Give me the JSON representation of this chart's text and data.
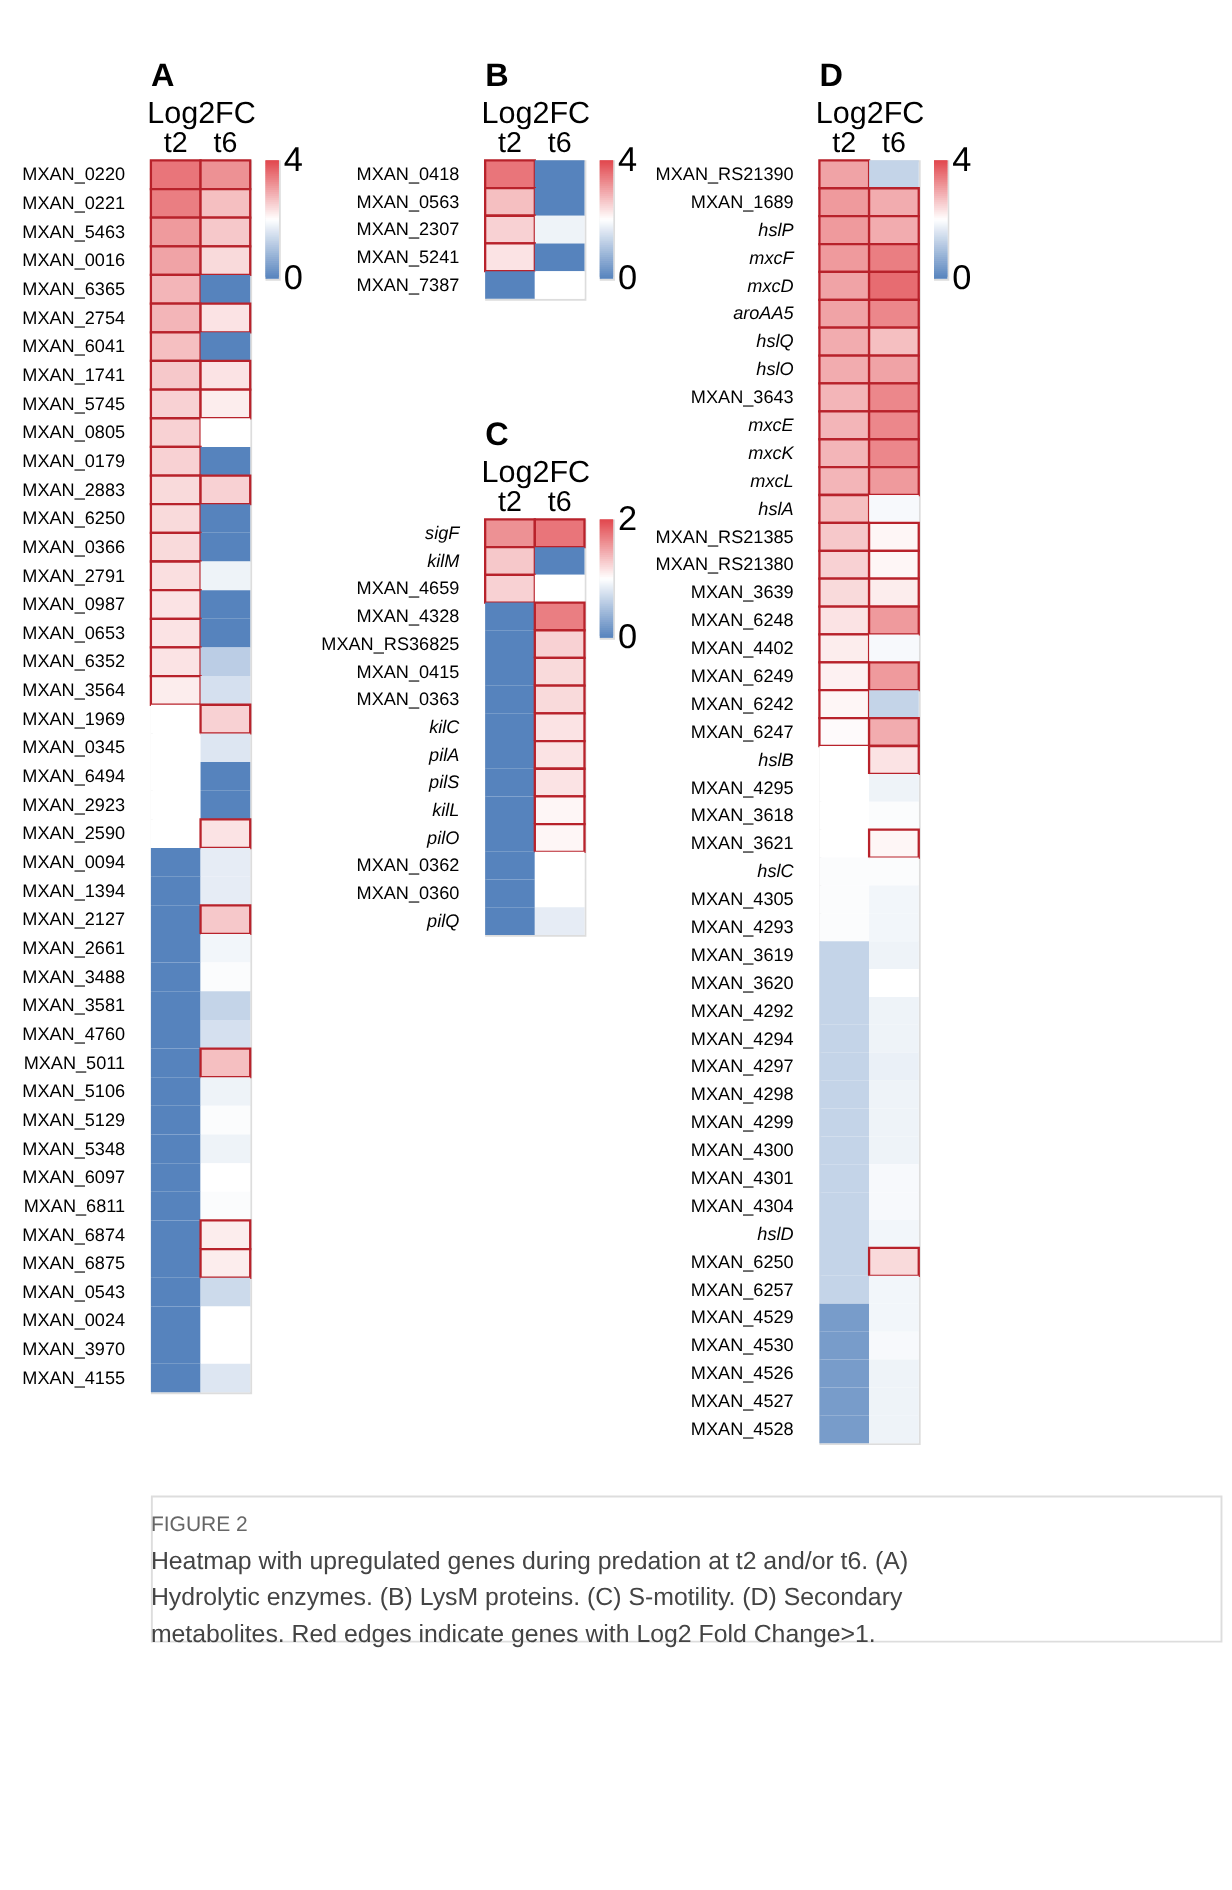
{
  "chart_data": [
    {
      "type": "heatmap",
      "title": "A",
      "xlabel": "Log2FC",
      "categories": [
        "t2",
        "t6"
      ],
      "clim": [
        0,
        4
      ],
      "cticks": [
        0,
        4
      ],
      "y_categories": [
        "MXAN_0220",
        "MXAN_0221",
        "MXAN_5463",
        "MXAN_0016",
        "MXAN_6365",
        "MXAN_2754",
        "MXAN_6041",
        "MXAN_1741",
        "MXAN_5745",
        "MXAN_0805",
        "MXAN_0179",
        "MXAN_2883",
        "MXAN_6250",
        "MXAN_0366",
        "MXAN_2791",
        "MXAN_0987",
        "MXAN_0653",
        "MXAN_6352",
        "MXAN_3564",
        "MXAN_1969",
        "MXAN_0345",
        "MXAN_6494",
        "MXAN_2923",
        "MXAN_2590",
        "MXAN_0094",
        "MXAN_1394",
        "MXAN_2127",
        "MXAN_2661",
        "MXAN_3488",
        "MXAN_3581",
        "MXAN_4760",
        "MXAN_5011",
        "MXAN_5106",
        "MXAN_5129",
        "MXAN_5348",
        "MXAN_6097",
        "MXAN_6811",
        "MXAN_6874",
        "MXAN_6875",
        "MXAN_0543",
        "MXAN_0024",
        "MXAN_3970",
        "MXAN_4155"
      ],
      "cells": [
        [
          3.5,
          3.2
        ],
        [
          3.4,
          2.7
        ],
        [
          3.1,
          2.6
        ],
        [
          3.0,
          2.4
        ],
        [
          2.8,
          0
        ],
        [
          2.8,
          2.3
        ],
        [
          2.7,
          0
        ],
        [
          2.6,
          2.3
        ],
        [
          2.5,
          2.2
        ],
        [
          2.5,
          2.0
        ],
        [
          2.5,
          0
        ],
        [
          2.4,
          2.5
        ],
        [
          2.4,
          0
        ],
        [
          2.4,
          0
        ],
        [
          2.35,
          1.8
        ],
        [
          2.3,
          0
        ],
        [
          2.3,
          0
        ],
        [
          2.3,
          1.2
        ],
        [
          2.2,
          1.5
        ],
        [
          2.0,
          2.5
        ],
        [
          2.0,
          1.6
        ],
        [
          2.0,
          0
        ],
        [
          2.0,
          0
        ],
        [
          2.0,
          2.3
        ],
        [
          0,
          1.7
        ],
        [
          0,
          1.7
        ],
        [
          0,
          2.6
        ],
        [
          0,
          1.85
        ],
        [
          0,
          1.95
        ],
        [
          0,
          1.3
        ],
        [
          0,
          1.5
        ],
        [
          0,
          2.7
        ],
        [
          0,
          1.8
        ],
        [
          0,
          1.95
        ],
        [
          0,
          1.8
        ],
        [
          0,
          2.0
        ],
        [
          0,
          1.95
        ],
        [
          0,
          2.2
        ],
        [
          0,
          2.2
        ],
        [
          0,
          1.4
        ],
        [
          0,
          2.0
        ],
        [
          0,
          2.0
        ],
        [
          0,
          1.6
        ]
      ],
      "annotations": [
        "FIGURE 2",
        "Heatmap with upregulated genes during predation at t2 and/or t6. (A) Hydrolytic enzymes. (B) LysM proteins. (C) S-motility. (D) Secondary metabolites. Red edges indicate genes with Log2 Fold Change>1."
      ]
    },
    {
      "type": "heatmap",
      "title": "B",
      "xlabel": "Log2FC",
      "categories": [
        "t2",
        "t6"
      ],
      "clim": [
        0,
        4
      ],
      "cticks": [
        0,
        4
      ],
      "y_categories": [
        "MXAN_0418",
        "MXAN_0563",
        "MXAN_2307",
        "MXAN_5241",
        "MXAN_7387"
      ],
      "cells": [
        [
          3.5,
          0
        ],
        [
          2.7,
          0
        ],
        [
          2.5,
          1.8
        ],
        [
          2.3,
          0
        ],
        [
          0,
          2.0
        ]
      ]
    },
    {
      "type": "heatmap",
      "title": "C",
      "xlabel": "Log2FC",
      "categories": [
        "t2",
        "t6"
      ],
      "clim": [
        0,
        2
      ],
      "cticks": [
        0,
        2
      ],
      "y_categories": [
        "sigF",
        "kilM",
        "MXAN_4659",
        "MXAN_4328",
        "MXAN_RS36825",
        "MXAN_0415",
        "MXAN_0363",
        "kilC",
        "pilA",
        "pilS",
        "kilL",
        "pilO",
        "MXAN_0362",
        "MXAN_0360",
        "pilQ"
      ],
      "cells": [
        [
          1.6,
          1.75
        ],
        [
          1.3,
          0
        ],
        [
          1.25,
          1.0
        ],
        [
          0,
          1.7
        ],
        [
          0,
          1.25
        ],
        [
          0,
          1.2
        ],
        [
          0,
          1.2
        ],
        [
          0,
          1.15
        ],
        [
          0,
          1.15
        ],
        [
          0,
          1.15
        ],
        [
          0,
          1.05
        ],
        [
          0,
          1.05
        ],
        [
          0,
          1.0
        ],
        [
          0,
          1.0
        ],
        [
          0,
          0.85
        ]
      ]
    },
    {
      "type": "heatmap",
      "title": "D",
      "xlabel": "Log2FC",
      "categories": [
        "t2",
        "t6"
      ],
      "clim": [
        0,
        4
      ],
      "cticks": [
        0,
        4
      ],
      "y_categories": [
        "MXAN_RS21390",
        "MXAN_1689",
        "hslP",
        "mxcF",
        "mxcD",
        "aroAA5",
        "hslQ",
        "hslO",
        "MXAN_3643",
        "mxcE",
        "mxcK",
        "mxcL",
        "hslA",
        "MXAN_RS21385",
        "MXAN_RS21380",
        "MXAN_3639",
        "MXAN_6248",
        "MXAN_4402",
        "MXAN_6249",
        "MXAN_6242",
        "MXAN_6247",
        "hslB",
        "MXAN_4295",
        "MXAN_3618",
        "MXAN_3621",
        "hslC",
        "MXAN_4305",
        "MXAN_4293",
        "MXAN_3619",
        "MXAN_3620",
        "MXAN_4292",
        "MXAN_4294",
        "MXAN_4297",
        "MXAN_4298",
        "MXAN_4299",
        "MXAN_4300",
        "MXAN_4301",
        "MXAN_4304",
        "hslD",
        "MXAN_6250",
        "MXAN_6257",
        "MXAN_4529",
        "MXAN_4530",
        "MXAN_4526",
        "MXAN_4527",
        "MXAN_4528"
      ],
      "cells": [
        [
          3.0,
          1.3
        ],
        [
          3.1,
          2.9
        ],
        [
          3.1,
          2.9
        ],
        [
          3.1,
          3.4
        ],
        [
          3.0,
          3.6
        ],
        [
          3.0,
          3.3
        ],
        [
          2.9,
          2.7
        ],
        [
          2.9,
          3.0
        ],
        [
          2.8,
          3.3
        ],
        [
          2.8,
          3.3
        ],
        [
          2.8,
          3.3
        ],
        [
          2.8,
          3.1
        ],
        [
          2.7,
          1.9
        ],
        [
          2.6,
          2.1
        ],
        [
          2.5,
          2.1
        ],
        [
          2.4,
          2.2
        ],
        [
          2.3,
          3.1
        ],
        [
          2.2,
          1.9
        ],
        [
          2.15,
          3.1
        ],
        [
          2.1,
          1.3
        ],
        [
          2.05,
          2.9
        ],
        [
          2.0,
          2.3
        ],
        [
          2.0,
          1.8
        ],
        [
          2.0,
          1.95
        ],
        [
          2.0,
          2.1
        ],
        [
          1.95,
          1.95
        ],
        [
          1.95,
          1.85
        ],
        [
          1.95,
          1.85
        ],
        [
          1.3,
          1.8
        ],
        [
          1.3,
          2.0
        ],
        [
          1.3,
          1.8
        ],
        [
          1.3,
          1.8
        ],
        [
          1.3,
          1.75
        ],
        [
          1.3,
          1.8
        ],
        [
          1.3,
          1.8
        ],
        [
          1.3,
          1.8
        ],
        [
          1.3,
          1.9
        ],
        [
          1.3,
          1.9
        ],
        [
          1.3,
          1.85
        ],
        [
          1.3,
          2.4
        ],
        [
          1.3,
          1.85
        ],
        [
          0.4,
          1.85
        ],
        [
          0.4,
          1.9
        ],
        [
          0.4,
          1.8
        ],
        [
          0.4,
          1.8
        ],
        [
          0.4,
          1.8
        ]
      ]
    }
  ]
}
